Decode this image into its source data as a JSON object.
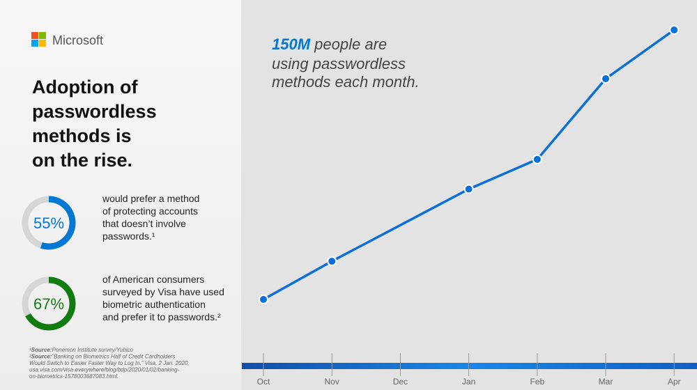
{
  "brand": "Microsoft",
  "headline_lines": [
    "Adoption of",
    "passwordless",
    "methods is",
    "on the rise."
  ],
  "stats": [
    {
      "value": 55,
      "label": "55%",
      "color": "#0078d4",
      "lines": [
        "would prefer a method",
        "of protecting accounts",
        "that doesn’t involve",
        "passwords.¹"
      ]
    },
    {
      "value": 67,
      "label": "67%",
      "color": "#107c10",
      "lines": [
        "of American consumers",
        "surveyed by Visa have used",
        "biometric authentication",
        "and prefer it to passwords.²"
      ]
    }
  ],
  "footnotes": [
    {
      "marker": "¹",
      "source": "Source:",
      "lines": [
        "Ponemon Institute survey/Yubico"
      ]
    },
    {
      "marker": "²",
      "source": "Source:",
      "lines": [
        "“Banking on Biometrics Half of Credit Cardholders",
        "Would Switch to Easier Faster Way to Log In.” Visa, 2 Jan. 2020,",
        "usa.visa.com/visa-everywhere/blog/bdp/2020/01/02/banking-",
        "on-biometrics-1578003687083.html."
      ]
    }
  ],
  "chart_data": {
    "type": "line",
    "annotation": {
      "highlight": "150M",
      "lines": [
        " people are",
        "using passwordless",
        "methods each month."
      ]
    },
    "categories": [
      "Oct",
      "Nov",
      "Dec",
      "Jan",
      "Feb",
      "Mar",
      "Apr"
    ],
    "series": [
      {
        "color": "#0a6fd8",
        "values": [
          23,
          41,
          58,
          75,
          89,
          127,
          150
        ]
      }
    ],
    "hidden_markers": [
      2
    ],
    "ylim": [
      0,
      160
    ]
  }
}
